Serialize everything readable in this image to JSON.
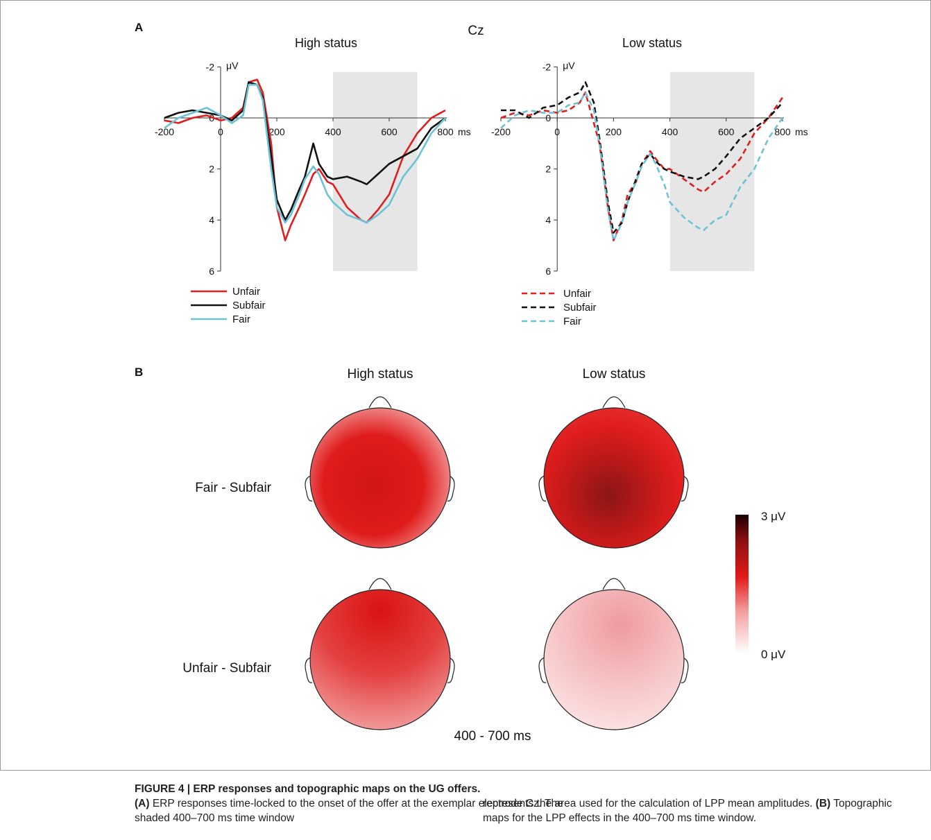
{
  "panel_a": {
    "label": "A",
    "electrode": "Cz",
    "xaxis_unit": "ms",
    "yaxis_unit": "μV",
    "shaded_window": [
      400,
      700
    ],
    "legend": [
      "Unfair",
      "Subfair",
      "Fair"
    ]
  },
  "panel_b": {
    "label": "B",
    "columns": [
      "High status",
      "Low status"
    ],
    "rows": [
      "Fair - Subfair",
      "Unfair - Subfair"
    ],
    "time_window": "400 - 700 ms",
    "colorbar": {
      "max_label": "3 μV",
      "min_label": "0 μV",
      "max": 3,
      "min": 0,
      "colors": [
        "#ffffff",
        "#f3a0a0",
        "#e31a1a",
        "#8a0f10",
        "#1a0000"
      ]
    },
    "intensity": {
      "high_fair": 2.0,
      "low_fair": 2.3,
      "high_unfair": 1.9,
      "low_unfair": 0.5
    }
  },
  "colors": {
    "unfair": "#e01e1e",
    "subfair": "#111111",
    "fair": "#6cc3d5",
    "overlap": "#e0805a",
    "shade": "#e6e6e6"
  },
  "chart_data": [
    {
      "type": "line",
      "title": "High status",
      "xlabel": "ms",
      "ylabel": "μV",
      "xlim": [
        -200,
        800
      ],
      "ylim": [
        6,
        -2
      ],
      "xticks": [
        -200,
        0,
        200,
        400,
        600,
        800
      ],
      "yticks": [
        -2,
        0,
        2,
        4,
        6
      ],
      "series": [
        {
          "name": "Unfair",
          "style": "solid",
          "x": [
            -200,
            -150,
            -100,
            -50,
            0,
            40,
            80,
            100,
            130,
            150,
            180,
            200,
            230,
            250,
            280,
            300,
            330,
            350,
            380,
            400,
            450,
            500,
            520,
            560,
            600,
            650,
            700,
            750,
            800
          ],
          "y": [
            0.1,
            0.2,
            0,
            -0.1,
            0.1,
            0,
            -0.4,
            -1.4,
            -1.5,
            -1.0,
            1.0,
            3.5,
            4.8,
            4.2,
            3.5,
            3.0,
            2.2,
            2.0,
            2.5,
            2.6,
            3.5,
            4.0,
            4.1,
            3.6,
            3.0,
            1.5,
            0.6,
            0,
            -0.3
          ]
        },
        {
          "name": "Subfair",
          "style": "solid",
          "x": [
            -200,
            -150,
            -100,
            -50,
            0,
            40,
            80,
            100,
            130,
            150,
            180,
            200,
            230,
            250,
            280,
            300,
            330,
            350,
            380,
            400,
            450,
            500,
            520,
            560,
            600,
            650,
            700,
            750,
            800
          ],
          "y": [
            0,
            -0.2,
            -0.3,
            -0.2,
            -0.1,
            0.1,
            -0.3,
            -1.4,
            -1.3,
            -0.8,
            1.5,
            3.2,
            4.0,
            3.6,
            2.8,
            2.3,
            1.0,
            1.8,
            2.3,
            2.4,
            2.3,
            2.5,
            2.6,
            2.2,
            1.8,
            1.5,
            1.2,
            0.4,
            0
          ]
        },
        {
          "name": "Fair",
          "style": "solid",
          "x": [
            -200,
            -150,
            -100,
            -50,
            0,
            40,
            80,
            100,
            130,
            150,
            180,
            200,
            230,
            250,
            280,
            300,
            330,
            350,
            380,
            400,
            450,
            500,
            520,
            560,
            600,
            650,
            700,
            750,
            800
          ],
          "y": [
            0.4,
            0,
            -0.2,
            -0.4,
            -0.1,
            0.2,
            -0.1,
            -1.3,
            -1.3,
            -0.7,
            2.0,
            3.5,
            4.1,
            3.8,
            3.0,
            2.4,
            1.9,
            2.2,
            3.0,
            3.3,
            3.8,
            4.0,
            4.1,
            3.8,
            3.4,
            2.3,
            1.6,
            0.6,
            0
          ]
        }
      ]
    },
    {
      "type": "line",
      "title": "Low status",
      "xlabel": "ms",
      "ylabel": "μV",
      "xlim": [
        -200,
        800
      ],
      "ylim": [
        6,
        -2
      ],
      "xticks": [
        -200,
        0,
        200,
        400,
        600,
        800
      ],
      "yticks": [
        -2,
        0,
        2,
        4,
        6
      ],
      "series": [
        {
          "name": "Unfair",
          "style": "dashed",
          "x": [
            -200,
            -150,
            -100,
            -50,
            0,
            40,
            80,
            100,
            130,
            150,
            180,
            200,
            230,
            250,
            280,
            300,
            330,
            350,
            380,
            400,
            450,
            500,
            520,
            560,
            600,
            650,
            700,
            750,
            800
          ],
          "y": [
            0,
            -0.2,
            -0.1,
            -0.3,
            -0.2,
            -0.3,
            -0.6,
            -1.0,
            0.2,
            1.0,
            3.5,
            4.8,
            4.0,
            3.0,
            2.5,
            1.8,
            1.3,
            1.6,
            2.0,
            2.0,
            2.4,
            2.8,
            2.9,
            2.5,
            2.2,
            1.6,
            0.6,
            0,
            -0.8
          ]
        },
        {
          "name": "Subfair",
          "style": "dashed",
          "x": [
            -200,
            -150,
            -100,
            -50,
            0,
            40,
            80,
            100,
            130,
            150,
            180,
            200,
            230,
            250,
            280,
            300,
            330,
            350,
            380,
            400,
            450,
            500,
            520,
            560,
            600,
            650,
            700,
            750,
            800
          ],
          "y": [
            -0.3,
            -0.3,
            0,
            -0.4,
            -0.5,
            -0.8,
            -1.0,
            -1.4,
            -0.6,
            0.8,
            3.3,
            4.5,
            4.1,
            3.3,
            2.4,
            1.8,
            1.4,
            1.7,
            2.0,
            2.1,
            2.3,
            2.4,
            2.3,
            2.0,
            1.5,
            0.8,
            0.4,
            0,
            -0.6
          ]
        },
        {
          "name": "Fair",
          "style": "dashed",
          "x": [
            -200,
            -150,
            -100,
            -50,
            0,
            40,
            80,
            100,
            130,
            150,
            180,
            200,
            230,
            250,
            280,
            300,
            330,
            350,
            380,
            400,
            450,
            500,
            520,
            560,
            600,
            650,
            700,
            750,
            800
          ],
          "y": [
            0.4,
            -0.1,
            -0.3,
            -0.2,
            -0.2,
            -0.5,
            -0.6,
            -1.0,
            -0.3,
            1.0,
            3.6,
            4.8,
            4.1,
            3.3,
            2.5,
            1.9,
            1.4,
            1.8,
            2.6,
            3.3,
            3.9,
            4.3,
            4.4,
            4.0,
            3.8,
            2.7,
            2.0,
            0.8,
            0
          ]
        }
      ]
    }
  ],
  "caption": {
    "heading": "FIGURE 4 | ERP responses and topographic maps on the UG offers.",
    "a_label": "(A)",
    "a_text": " ERP responses time-locked to the onset of the offer at the exemplar electrode Cz. The shaded 400–700 ms time window",
    "a_text_cont": "represents the area used for the calculation of LPP mean amplitudes.",
    "b_label": "(B)",
    "b_text": " Topographic maps for the LPP effects in the 400–700 ms time window."
  }
}
